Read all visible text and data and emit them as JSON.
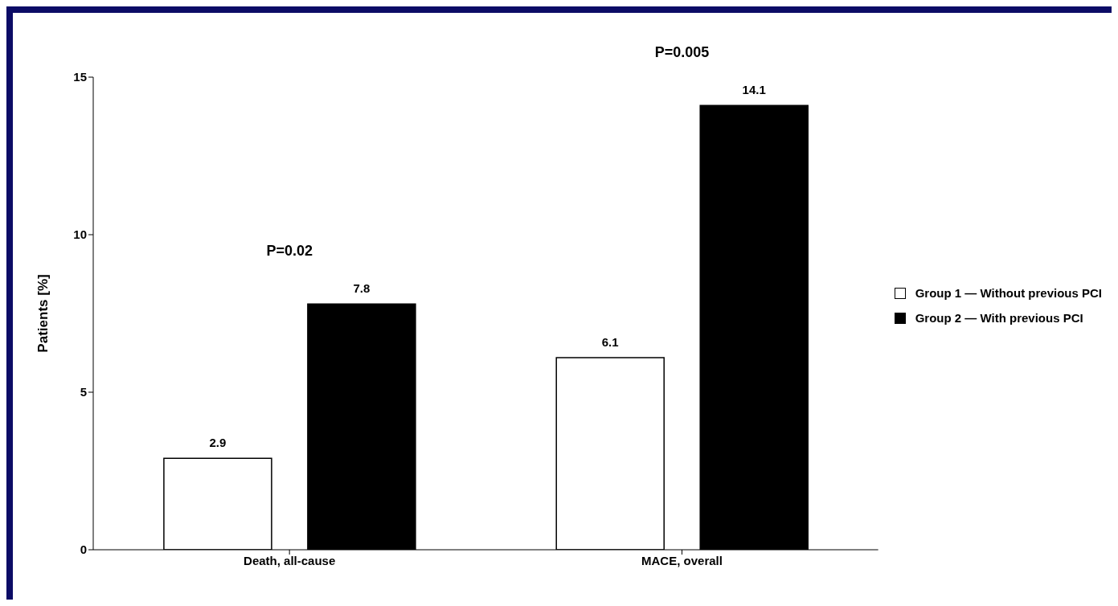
{
  "chart_data": {
    "type": "bar",
    "ylabel": "Patients [%]",
    "categories": [
      "Death, all-cause",
      "MACE, overall"
    ],
    "series": [
      {
        "name": "Group 1 — Without previous PCI",
        "color": "#ffffff",
        "values": [
          2.9,
          6.1
        ]
      },
      {
        "name": "Group 2 — With previous PCI",
        "color": "#000000",
        "values": [
          7.8,
          14.1
        ]
      }
    ],
    "ylim": [
      0,
      15
    ],
    "yticks": [
      0,
      5,
      10,
      15
    ],
    "grid": false,
    "legend": "right",
    "data_labels": true,
    "annotations": [
      "P=0.02",
      "P=0.005"
    ]
  }
}
